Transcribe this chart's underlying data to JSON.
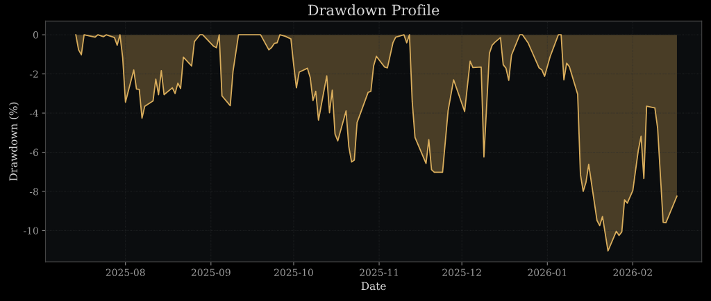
{
  "chart_data": {
    "type": "area",
    "title": "Drawdown Profile",
    "xlabel": "Date",
    "ylabel": "Drawdown (%)",
    "x": [
      "2025-07-14",
      "2025-07-15",
      "2025-07-16",
      "2025-07-17",
      "2025-07-21",
      "2025-07-22",
      "2025-07-24",
      "2025-07-25",
      "2025-07-28",
      "2025-07-29",
      "2025-07-30",
      "2025-07-31",
      "2025-08-01",
      "2025-08-04",
      "2025-08-05",
      "2025-08-06",
      "2025-08-07",
      "2025-08-08",
      "2025-08-11",
      "2025-08-12",
      "2025-08-13",
      "2025-08-14",
      "2025-08-15",
      "2025-08-18",
      "2025-08-19",
      "2025-08-20",
      "2025-08-21",
      "2025-08-22",
      "2025-08-25",
      "2025-08-26",
      "2025-08-28",
      "2025-08-29",
      "2025-09-02",
      "2025-09-03",
      "2025-09-04",
      "2025-09-05",
      "2025-09-08",
      "2025-09-09",
      "2025-09-11",
      "2025-09-19",
      "2025-09-22",
      "2025-09-23",
      "2025-09-24",
      "2025-09-25",
      "2025-09-26",
      "2025-09-28",
      "2025-09-30",
      "2025-10-01",
      "2025-10-02",
      "2025-10-03",
      "2025-10-06",
      "2025-10-07",
      "2025-10-08",
      "2025-10-09",
      "2025-10-10",
      "2025-10-13",
      "2025-10-14",
      "2025-10-15",
      "2025-10-16",
      "2025-10-17",
      "2025-10-20",
      "2025-10-21",
      "2025-10-22",
      "2025-10-23",
      "2025-10-24",
      "2025-10-28",
      "2025-10-29",
      "2025-10-30",
      "2025-10-31",
      "2025-11-03",
      "2025-11-04",
      "2025-11-06",
      "2025-11-07",
      "2025-11-10",
      "2025-11-11",
      "2025-11-12",
      "2025-11-13",
      "2025-11-14",
      "2025-11-18",
      "2025-11-19",
      "2025-11-20",
      "2025-11-21",
      "2025-11-24",
      "2025-11-26",
      "2025-11-28",
      "2025-12-02",
      "2025-12-04",
      "2025-12-05",
      "2025-12-08",
      "2025-12-09",
      "2025-12-11",
      "2025-12-12",
      "2025-12-13",
      "2025-12-15",
      "2025-12-16",
      "2025-12-17",
      "2025-12-18",
      "2025-12-19",
      "2025-12-22",
      "2025-12-23",
      "2025-12-25",
      "2025-12-29",
      "2025-12-30",
      "2025-12-31",
      "2026-01-02",
      "2026-01-05",
      "2026-01-06",
      "2026-01-07",
      "2026-01-08",
      "2026-01-09",
      "2026-01-12",
      "2026-01-13",
      "2026-01-14",
      "2026-01-15",
      "2026-01-16",
      "2026-01-19",
      "2026-01-20",
      "2026-01-21",
      "2026-01-23",
      "2026-01-26",
      "2026-01-27",
      "2026-01-28",
      "2026-01-29",
      "2026-01-30",
      "2026-02-01",
      "2026-02-03",
      "2026-02-04",
      "2026-02-05",
      "2026-02-06",
      "2026-02-09",
      "2026-02-10",
      "2026-02-12",
      "2026-02-13",
      "2026-02-17"
    ],
    "series": [
      {
        "color": "#d9ad5c",
        "values": [
          0,
          -0.77,
          -1.02,
          0,
          -0.12,
          0,
          -0.1,
          0,
          -0.14,
          -0.53,
          0,
          -1.18,
          -3.44,
          -1.8,
          -2.77,
          -2.79,
          -4.26,
          -3.65,
          -3.38,
          -2.27,
          -3.06,
          -1.83,
          -3.06,
          -2.71,
          -3.0,
          -2.47,
          -2.74,
          -1.14,
          -1.59,
          -0.35,
          0,
          0,
          -0.59,
          -0.66,
          0,
          -3.12,
          -3.62,
          -1.88,
          0,
          0,
          -0.77,
          -0.65,
          -0.44,
          -0.41,
          0,
          -0.08,
          -0.21,
          -1.53,
          -2.71,
          -1.91,
          -1.71,
          -2.18,
          -3.36,
          -2.89,
          -4.36,
          -2.1,
          -3.98,
          -2.83,
          -5.07,
          -5.42,
          -3.89,
          -5.71,
          -6.5,
          -6.4,
          -4.48,
          -2.94,
          -2.89,
          -1.59,
          -1.1,
          -1.65,
          -1.69,
          -0.41,
          -0.12,
          0,
          -0.41,
          0,
          -3.42,
          -5.24,
          -6.57,
          -5.36,
          -6.89,
          -7.02,
          -7.02,
          -3.89,
          -2.3,
          -3.92,
          -1.35,
          -1.67,
          -1.65,
          -6.24,
          -0.94,
          -0.53,
          -0.38,
          -0.14,
          -1.53,
          -1.71,
          -2.33,
          -1.04,
          0,
          0,
          -0.41,
          -1.69,
          -1.79,
          -2.12,
          -1.12,
          0,
          0,
          -2.3,
          -1.45,
          -1.63,
          -3.04,
          -7.13,
          -8.0,
          -7.54,
          -6.62,
          -9.48,
          -9.75,
          -9.28,
          -11.04,
          -10.04,
          -10.25,
          -10.07,
          -8.43,
          -8.6,
          -7.95,
          -5.89,
          -5.18,
          -7.34,
          -3.65,
          -3.74,
          -4.77,
          -9.58,
          -9.6,
          -8.24
        ]
      }
    ],
    "xlim": [
      "2025-07-03",
      "2026-02-26"
    ],
    "xticks": [
      {
        "value": "2025-08-01",
        "label": "2025-08"
      },
      {
        "value": "2025-09-01",
        "label": "2025-09"
      },
      {
        "value": "2025-10-01",
        "label": "2025-10"
      },
      {
        "value": "2025-11-01",
        "label": "2025-11"
      },
      {
        "value": "2025-12-01",
        "label": "2025-12"
      },
      {
        "value": "2026-01-01",
        "label": "2026-01"
      },
      {
        "value": "2026-02-01",
        "label": "2026-02"
      }
    ],
    "ylim": [
      -11.6,
      0.7
    ],
    "yticks": [
      -10,
      -8,
      -6,
      -4,
      -2,
      0
    ],
    "grid": true
  }
}
